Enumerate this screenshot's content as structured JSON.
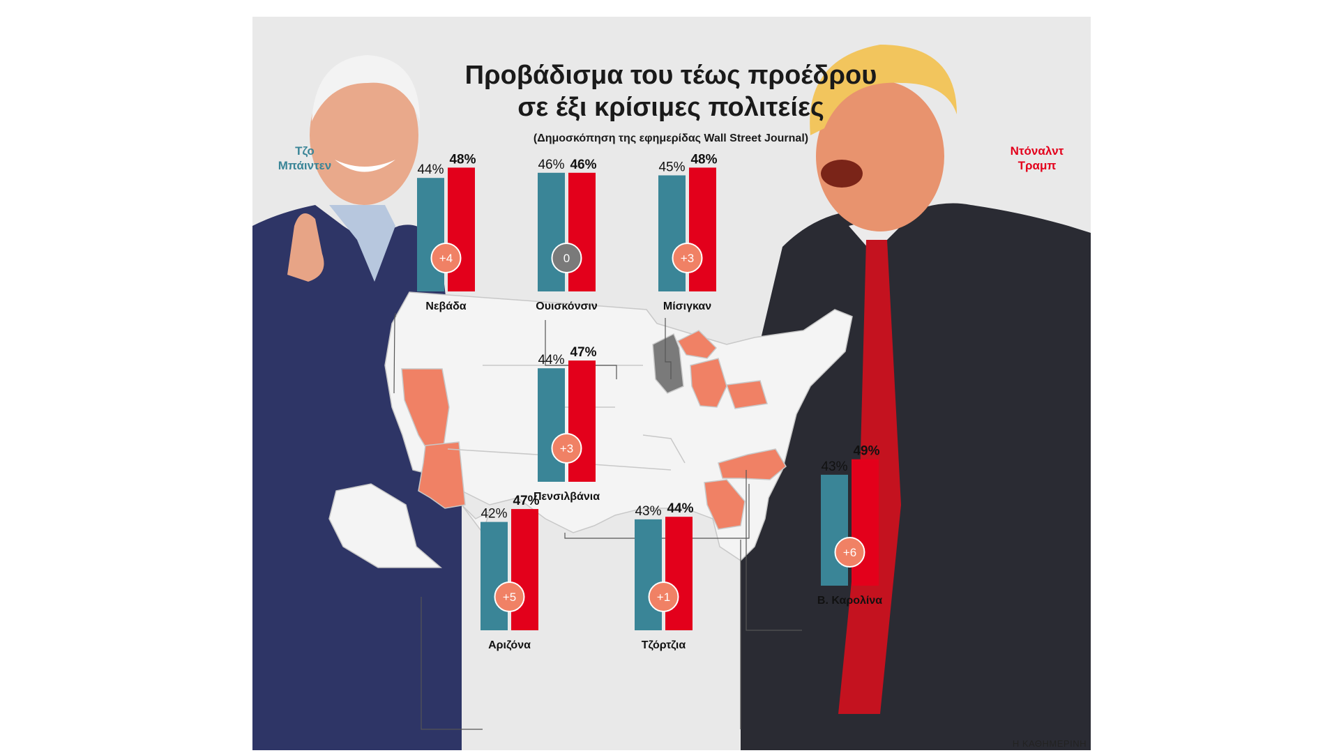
{
  "title_line1": "Προβάδισμα του τέως προέδρου",
  "title_line2": "σε έξι κρίσιμες πολιτείες",
  "subtitle": "(Δημοσκόπηση της εφημερίδας Wall Street Journal)",
  "candidates": {
    "biden": {
      "line1": "Τζο",
      "line2": "Μπάιντεν",
      "color": "#3a8597"
    },
    "trump": {
      "line1": "Ντόναλντ",
      "line2": "Τραμπ",
      "color": "#e3001b"
    }
  },
  "colors": {
    "trump_lead": "#f08165",
    "tie": "#7a7a7a",
    "map_land": "#f4f4f4",
    "map_border": "#c8c8c8",
    "background": "#e9e9e9"
  },
  "credit": "Η ΚΑΘΗΜΕΡΙΝΗ",
  "chart_data": [
    {
      "type": "bar",
      "state": "Νεβάδα",
      "categories": [
        "Τζο Μπάιντεν",
        "Ντόναλντ Τραμπ"
      ],
      "values": [
        44,
        48
      ],
      "value_labels": [
        "44%",
        "48%"
      ],
      "margin_label": "+4",
      "lead": "trump"
    },
    {
      "type": "bar",
      "state": "Ουισκόνσιν",
      "categories": [
        "Τζο Μπάιντεν",
        "Ντόναλντ Τραμπ"
      ],
      "values": [
        46,
        46
      ],
      "value_labels": [
        "46%",
        "46%"
      ],
      "margin_label": "0",
      "lead": "tie"
    },
    {
      "type": "bar",
      "state": "Μίσιγκαν",
      "categories": [
        "Τζο Μπάιντεν",
        "Ντόναλντ Τραμπ"
      ],
      "values": [
        45,
        48
      ],
      "value_labels": [
        "45%",
        "48%"
      ],
      "margin_label": "+3",
      "lead": "trump"
    },
    {
      "type": "bar",
      "state": "Πενσιλβάνια",
      "categories": [
        "Τζο Μπάιντεν",
        "Ντόναλντ Τραμπ"
      ],
      "values": [
        44,
        47
      ],
      "value_labels": [
        "44%",
        "47%"
      ],
      "margin_label": "+3",
      "lead": "trump"
    },
    {
      "type": "bar",
      "state": "Αριζόνα",
      "categories": [
        "Τζο Μπάιντεν",
        "Ντόναλντ Τραμπ"
      ],
      "values": [
        42,
        47
      ],
      "value_labels": [
        "42%",
        "47%"
      ],
      "margin_label": "+5",
      "lead": "trump"
    },
    {
      "type": "bar",
      "state": "Τζόρτζια",
      "categories": [
        "Τζο Μπάιντεν",
        "Ντόναλντ Τραμπ"
      ],
      "values": [
        43,
        44
      ],
      "value_labels": [
        "43%",
        "44%"
      ],
      "margin_label": "+1",
      "lead": "trump"
    },
    {
      "type": "bar",
      "state": "Β. Καρολίνα",
      "categories": [
        "Τζο Μπάιντεν",
        "Ντόναλντ Τραμπ"
      ],
      "values": [
        43,
        49
      ],
      "value_labels": [
        "43%",
        "49%"
      ],
      "margin_label": "+6",
      "lead": "trump"
    }
  ]
}
